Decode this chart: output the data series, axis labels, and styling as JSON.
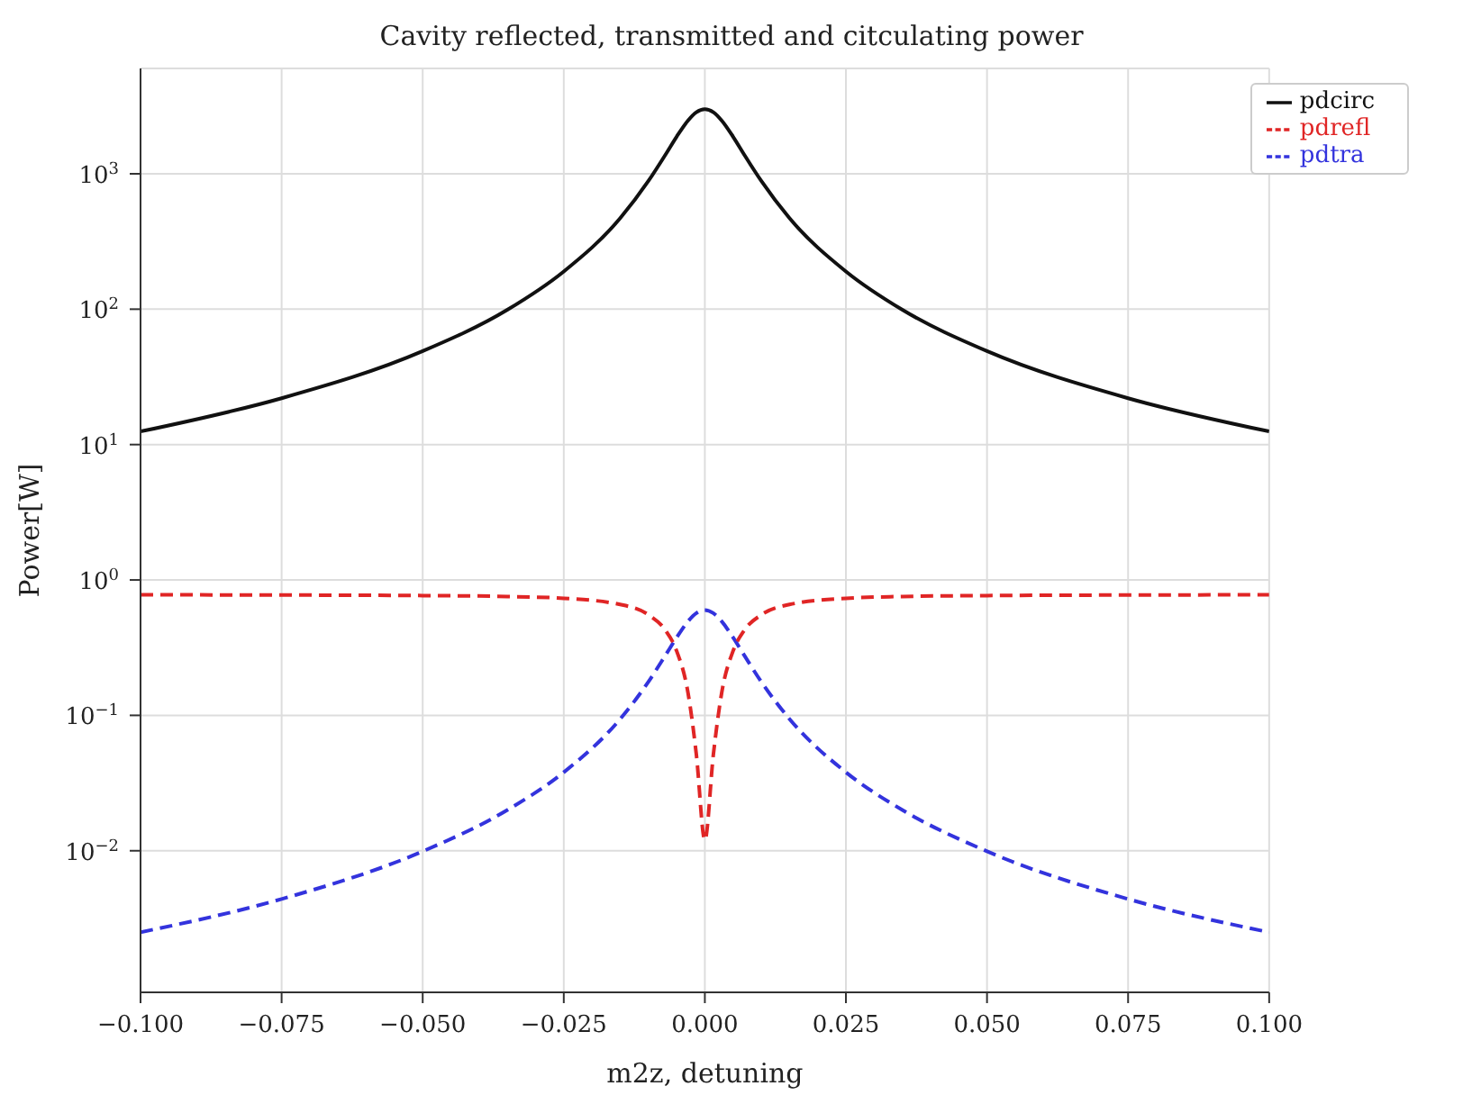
{
  "chart_data": {
    "type": "line",
    "title": "Cavity reflected, transmitted and citculating power",
    "xlabel": "m2z, detuning",
    "ylabel": "Power[W]",
    "x": [
      -0.1,
      -0.075,
      -0.05,
      -0.035,
      -0.025,
      -0.015,
      -0.01,
      -0.007,
      -0.005,
      -0.003,
      -0.0015,
      0,
      0.0015,
      0.003,
      0.005,
      0.007,
      0.01,
      0.015,
      0.025,
      0.035,
      0.05,
      0.075,
      0.1
    ],
    "series": [
      {
        "name": "pdtra",
        "color": "#3333dd",
        "line_style": "dashed",
        "values": [
          0.0025,
          0.0044,
          0.0099,
          0.02,
          0.038,
          0.094,
          0.177,
          0.277,
          0.376,
          0.494,
          0.569,
          0.6,
          0.569,
          0.494,
          0.376,
          0.277,
          0.177,
          0.094,
          0.038,
          0.02,
          0.0099,
          0.0044,
          0.0025
        ]
      },
      {
        "name": "pdrefl",
        "color": "#e02525",
        "line_style": "dashed",
        "values": [
          0.777,
          0.774,
          0.767,
          0.755,
          0.732,
          0.659,
          0.553,
          0.426,
          0.299,
          0.148,
          0.051,
          0.012,
          0.051,
          0.148,
          0.299,
          0.426,
          0.553,
          0.659,
          0.732,
          0.755,
          0.767,
          0.774,
          0.777
        ]
      },
      {
        "name": "pdcirc",
        "color": "#111111",
        "line_style": "solid",
        "values": [
          12.5,
          22,
          49,
          99,
          190,
          470,
          885,
          1380,
          1880,
          2470,
          2850,
          3000,
          2850,
          2470,
          1880,
          1380,
          885,
          470,
          190,
          99,
          49,
          22,
          12.5
        ]
      }
    ],
    "log": "y",
    "xlim": [
      -0.1,
      0.1
    ],
    "ylim": [
      0.0009,
      6000
    ],
    "xticks": [
      {
        "value": -0.1,
        "label": "−0.100"
      },
      {
        "value": -0.075,
        "label": "−0.075"
      },
      {
        "value": -0.05,
        "label": "−0.050"
      },
      {
        "value": -0.025,
        "label": "−0.025"
      },
      {
        "value": 0,
        "label": "0.000"
      },
      {
        "value": 0.025,
        "label": "0.025"
      },
      {
        "value": 0.05,
        "label": "0.050"
      },
      {
        "value": 0.075,
        "label": "0.075"
      },
      {
        "value": 0.1,
        "label": "0.100"
      }
    ],
    "yticks": [
      {
        "value": 0.01,
        "label": "10$^{−2}$"
      },
      {
        "value": 0.1,
        "label": "10$^{−1}$"
      },
      {
        "value": 1,
        "label": "10$^{0}$"
      },
      {
        "value": 10,
        "label": "10$^{1}$"
      },
      {
        "value": 100,
        "label": "10$^{2}$"
      },
      {
        "value": 1000,
        "label": "10$^{3}$"
      }
    ],
    "grid": true,
    "legend": "top right",
    "marker": "none"
  }
}
